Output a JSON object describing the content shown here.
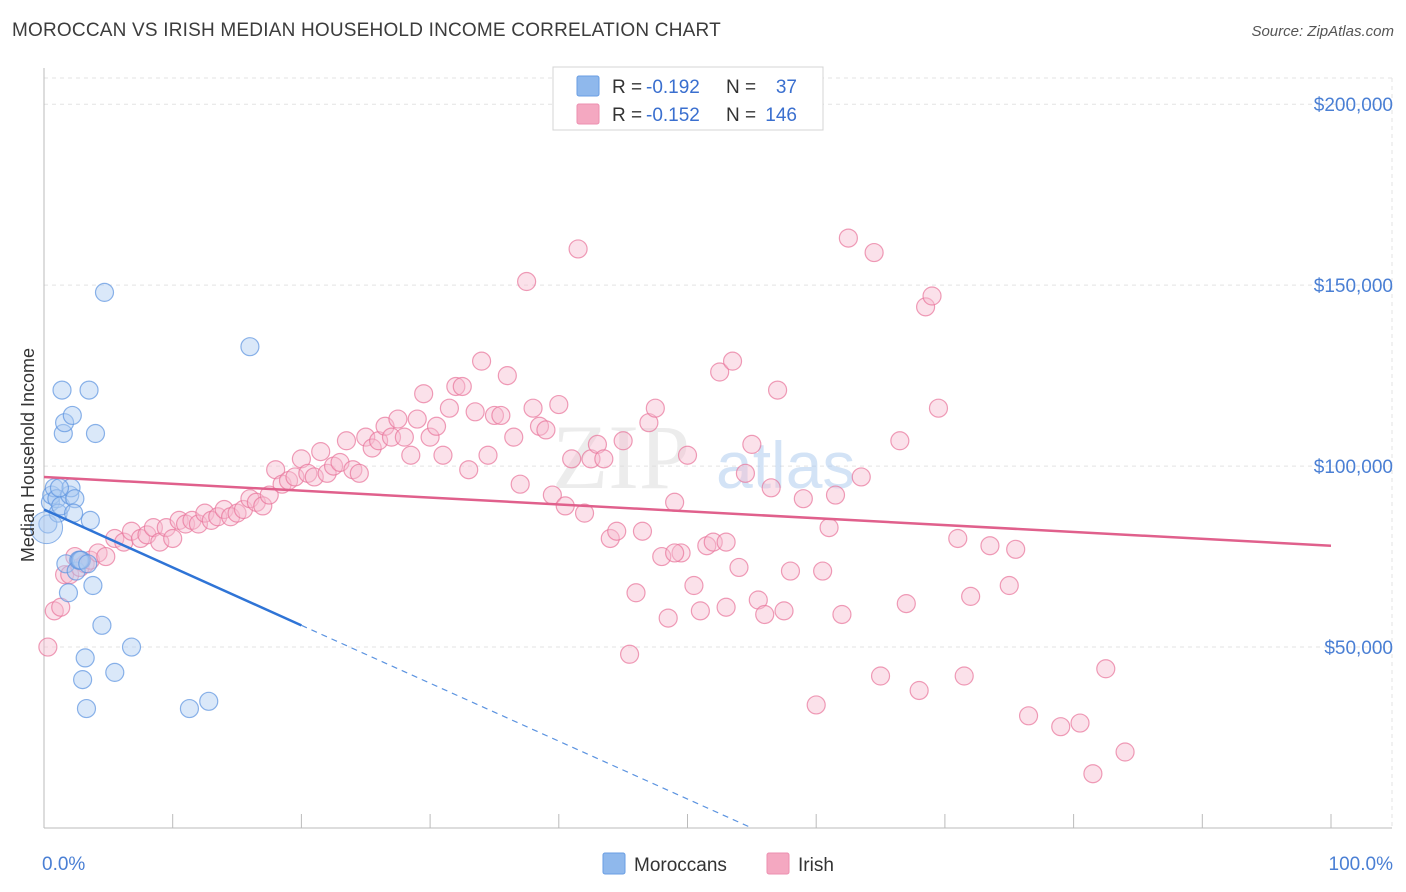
{
  "title": "MOROCCAN VS IRISH MEDIAN HOUSEHOLD INCOME CORRELATION CHART",
  "source": "Source: ZipAtlas.com",
  "watermark": {
    "zip": "ZIP",
    "atlas": "atlas"
  },
  "legend_top": [
    {
      "r_label": "R =",
      "r_value": "-0.192",
      "n_label": "N =",
      "n_value": "37",
      "color": "#8fb8ec"
    },
    {
      "r_label": "R =",
      "r_value": "-0.152",
      "n_label": "N =",
      "n_value": "146",
      "color": "#f4a8c1"
    }
  ],
  "legend_bottom": [
    {
      "label": "Moroccans",
      "color": "#8fb8ec"
    },
    {
      "label": "Irish",
      "color": "#f4a8c1"
    }
  ],
  "chart_data": {
    "type": "scatter",
    "ylabel": "Median Household Income",
    "xlabel": "",
    "xlim": [
      0,
      100
    ],
    "ylim": [
      0,
      210000
    ],
    "x_tick_labels": [
      "0.0%",
      "100.0%"
    ],
    "y_ticks": [
      50000,
      100000,
      150000,
      200000
    ],
    "y_tick_labels": [
      "$50,000",
      "$100,000",
      "$150,000",
      "$200,000"
    ],
    "grid": true,
    "series": [
      {
        "name": "Moroccans",
        "color": "#5b93e0",
        "fill": "#aecbf2",
        "trend": {
          "x0": 0,
          "y0": 88000,
          "x1": 20,
          "y1": 56000,
          "dash_to_x": 55,
          "dash_to_y": 0
        },
        "points": [
          [
            0.3,
            84000
          ],
          [
            0.5,
            90000
          ],
          [
            0.6,
            92000
          ],
          [
            0.8,
            94000
          ],
          [
            1.0,
            91000
          ],
          [
            1.1,
            87000
          ],
          [
            1.3,
            89000
          ],
          [
            1.4,
            121000
          ],
          [
            1.5,
            109000
          ],
          [
            1.6,
            112000
          ],
          [
            1.7,
            73000
          ],
          [
            1.9,
            65000
          ],
          [
            2.0,
            92000
          ],
          [
            2.1,
            94000
          ],
          [
            2.2,
            114000
          ],
          [
            2.4,
            91000
          ],
          [
            2.5,
            71000
          ],
          [
            2.7,
            74000
          ],
          [
            2.9,
            74000
          ],
          [
            3.0,
            41000
          ],
          [
            3.2,
            47000
          ],
          [
            3.3,
            33000
          ],
          [
            3.5,
            121000
          ],
          [
            3.6,
            85000
          ],
          [
            3.8,
            67000
          ],
          [
            4.0,
            109000
          ],
          [
            4.5,
            56000
          ],
          [
            4.7,
            148000
          ],
          [
            5.5,
            43000
          ],
          [
            6.8,
            50000
          ],
          [
            11.3,
            33000
          ],
          [
            12.8,
            35000
          ],
          [
            16.0,
            133000
          ],
          [
            2.3,
            87000
          ],
          [
            1.2,
            94000
          ],
          [
            2.8,
            74000
          ],
          [
            3.4,
            73000
          ]
        ]
      },
      {
        "name": "Irish",
        "color": "#e8739a",
        "fill": "#f7bcd0",
        "trend": {
          "x0": 0,
          "y0": 97000,
          "x1": 100,
          "y1": 78000
        },
        "points": [
          [
            0.3,
            50000
          ],
          [
            0.8,
            60000
          ],
          [
            1.3,
            61000
          ],
          [
            1.6,
            70000
          ],
          [
            2.0,
            70000
          ],
          [
            2.4,
            75000
          ],
          [
            2.8,
            72000
          ],
          [
            3.2,
            73000
          ],
          [
            3.6,
            74000
          ],
          [
            4.2,
            76000
          ],
          [
            4.8,
            75000
          ],
          [
            5.5,
            80000
          ],
          [
            6.2,
            79000
          ],
          [
            6.8,
            82000
          ],
          [
            7.5,
            80000
          ],
          [
            8.0,
            81000
          ],
          [
            8.5,
            83000
          ],
          [
            9.0,
            79000
          ],
          [
            9.5,
            83000
          ],
          [
            10.0,
            80000
          ],
          [
            10.5,
            85000
          ],
          [
            11.0,
            84000
          ],
          [
            11.5,
            85000
          ],
          [
            12.0,
            84000
          ],
          [
            12.5,
            87000
          ],
          [
            13.0,
            85000
          ],
          [
            13.5,
            86000
          ],
          [
            14.0,
            88000
          ],
          [
            14.5,
            86000
          ],
          [
            15.0,
            87000
          ],
          [
            15.5,
            88000
          ],
          [
            16.0,
            91000
          ],
          [
            16.5,
            90000
          ],
          [
            17.0,
            89000
          ],
          [
            17.5,
            92000
          ],
          [
            18.0,
            99000
          ],
          [
            18.5,
            95000
          ],
          [
            19.0,
            96000
          ],
          [
            19.5,
            97000
          ],
          [
            20.0,
            102000
          ],
          [
            20.5,
            98000
          ],
          [
            21.0,
            97000
          ],
          [
            21.5,
            104000
          ],
          [
            22.0,
            98000
          ],
          [
            22.5,
            100000
          ],
          [
            23.0,
            101000
          ],
          [
            23.5,
            107000
          ],
          [
            24.0,
            99000
          ],
          [
            24.5,
            98000
          ],
          [
            25.0,
            108000
          ],
          [
            25.5,
            105000
          ],
          [
            26.0,
            107000
          ],
          [
            26.5,
            111000
          ],
          [
            27.0,
            108000
          ],
          [
            27.5,
            113000
          ],
          [
            28.0,
            108000
          ],
          [
            28.5,
            103000
          ],
          [
            29.0,
            113000
          ],
          [
            29.5,
            120000
          ],
          [
            30.0,
            108000
          ],
          [
            30.5,
            111000
          ],
          [
            31.0,
            103000
          ],
          [
            31.5,
            116000
          ],
          [
            32.0,
            122000
          ],
          [
            32.5,
            122000
          ],
          [
            33.0,
            99000
          ],
          [
            33.5,
            115000
          ],
          [
            34.0,
            129000
          ],
          [
            34.5,
            103000
          ],
          [
            35.0,
            114000
          ],
          [
            35.5,
            114000
          ],
          [
            36.0,
            125000
          ],
          [
            36.5,
            108000
          ],
          [
            37.0,
            95000
          ],
          [
            37.5,
            151000
          ],
          [
            38.0,
            116000
          ],
          [
            38.5,
            111000
          ],
          [
            39.0,
            110000
          ],
          [
            39.5,
            92000
          ],
          [
            40.0,
            117000
          ],
          [
            40.5,
            89000
          ],
          [
            41.0,
            102000
          ],
          [
            41.5,
            160000
          ],
          [
            42.0,
            87000
          ],
          [
            42.5,
            102000
          ],
          [
            43.0,
            106000
          ],
          [
            43.5,
            102000
          ],
          [
            44.0,
            80000
          ],
          [
            44.5,
            82000
          ],
          [
            45.0,
            107000
          ],
          [
            45.5,
            48000
          ],
          [
            46.0,
            65000
          ],
          [
            46.5,
            82000
          ],
          [
            47.0,
            112000
          ],
          [
            47.5,
            116000
          ],
          [
            48.0,
            75000
          ],
          [
            48.5,
            58000
          ],
          [
            49.0,
            90000
          ],
          [
            49.5,
            76000
          ],
          [
            50.0,
            103000
          ],
          [
            50.5,
            67000
          ],
          [
            51.0,
            60000
          ],
          [
            51.5,
            78000
          ],
          [
            52.0,
            79000
          ],
          [
            52.5,
            126000
          ],
          [
            53.0,
            79000
          ],
          [
            53.5,
            129000
          ],
          [
            54.0,
            72000
          ],
          [
            54.5,
            98000
          ],
          [
            55.0,
            106000
          ],
          [
            55.5,
            63000
          ],
          [
            56.0,
            59000
          ],
          [
            56.5,
            94000
          ],
          [
            57.0,
            121000
          ],
          [
            57.5,
            60000
          ],
          [
            58.0,
            71000
          ],
          [
            59.0,
            91000
          ],
          [
            60.0,
            34000
          ],
          [
            60.5,
            71000
          ],
          [
            61.0,
            83000
          ],
          [
            61.5,
            92000
          ],
          [
            62.0,
            59000
          ],
          [
            62.5,
            163000
          ],
          [
            63.5,
            97000
          ],
          [
            64.5,
            159000
          ],
          [
            65.0,
            42000
          ],
          [
            66.5,
            107000
          ],
          [
            67.0,
            62000
          ],
          [
            68.0,
            38000
          ],
          [
            68.5,
            144000
          ],
          [
            69.0,
            147000
          ],
          [
            69.5,
            116000
          ],
          [
            71.5,
            42000
          ],
          [
            71.0,
            80000
          ],
          [
            72.0,
            64000
          ],
          [
            73.5,
            78000
          ],
          [
            75.0,
            67000
          ],
          [
            75.5,
            77000
          ],
          [
            76.5,
            31000
          ],
          [
            79.0,
            28000
          ],
          [
            80.5,
            29000
          ],
          [
            81.5,
            15000
          ],
          [
            82.5,
            44000
          ],
          [
            84.0,
            21000
          ],
          [
            53.0,
            61000
          ],
          [
            49.0,
            76000
          ]
        ]
      }
    ]
  }
}
